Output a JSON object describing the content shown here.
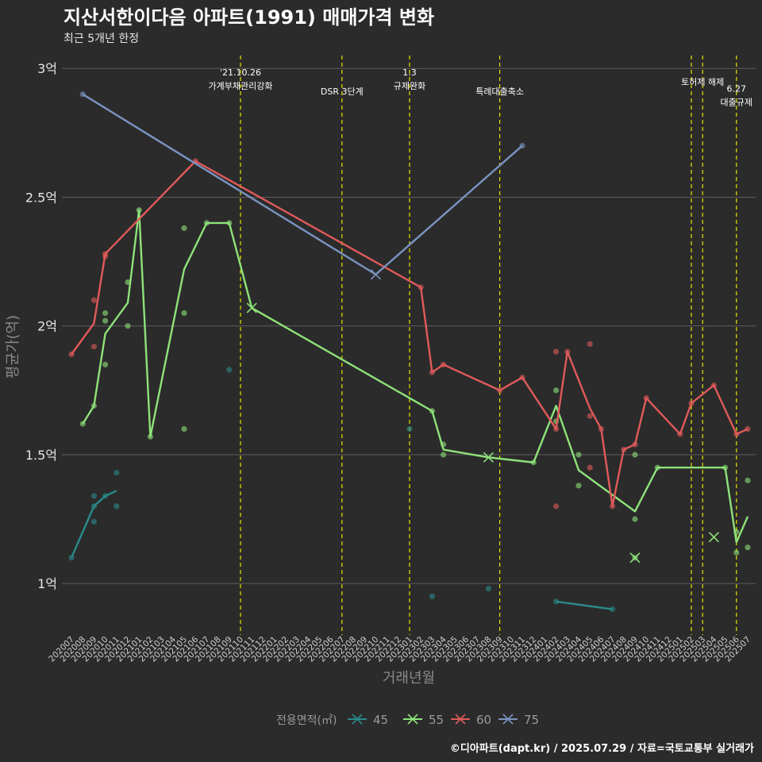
{
  "chart_data": {
    "type": "line",
    "title": "지산서한이다음 아파트(1991) 매매가격 변화",
    "subtitle": "최근 5개년 한정",
    "xlabel": "거래년월",
    "ylabel": "평균가(억)",
    "caption": "©디아파트(dapt.kr) / 2025.07.29 / 자료=국토교통부 실거래가",
    "ylim": [
      0.8,
      3.05
    ],
    "yticks": [
      {
        "v": 1,
        "label": "1억"
      },
      {
        "v": 1.5,
        "label": "1.5억"
      },
      {
        "v": 2,
        "label": "2억"
      },
      {
        "v": 2.5,
        "label": "2.5억"
      },
      {
        "v": 3,
        "label": "3억"
      }
    ],
    "categories": [
      "202007",
      "202008",
      "202009",
      "202010",
      "202011",
      "202012",
      "202101",
      "202102",
      "202103",
      "202104",
      "202105",
      "202106",
      "202107",
      "202108",
      "202109",
      "202110",
      "202111",
      "202112",
      "202201",
      "202202",
      "202203",
      "202204",
      "202205",
      "202206",
      "202207",
      "202208",
      "202209",
      "202210",
      "202211",
      "202212",
      "202301",
      "202302",
      "202303",
      "202304",
      "202305",
      "202306",
      "202307",
      "202308",
      "202309",
      "202310",
      "202311",
      "202312",
      "202401",
      "202402",
      "202403",
      "202404",
      "202405",
      "202406",
      "202407",
      "202408",
      "202409",
      "202410",
      "202411",
      "202412",
      "202501",
      "202502",
      "202503",
      "202504",
      "202505",
      "202506",
      "202507"
    ],
    "legend": {
      "title": "전용면적(㎡)",
      "position": "bottom"
    },
    "grid": true,
    "series": [
      {
        "name": "45",
        "color": "#2a8a8c",
        "line": [
          [
            "202007",
            1.1
          ],
          [
            "202009",
            1.3
          ],
          [
            "202010",
            1.34
          ],
          [
            "202011",
            1.36
          ],
          null,
          [
            "202402",
            0.93
          ],
          [
            "202407",
            0.9
          ]
        ],
        "points": [
          [
            "202007",
            1.1
          ],
          [
            "202009",
            1.3
          ],
          [
            "202009",
            1.34
          ],
          [
            "202009",
            1.24
          ],
          [
            "202010",
            1.34
          ],
          [
            "202011",
            1.43
          ],
          [
            "202011",
            1.3
          ],
          [
            "202109",
            1.83
          ],
          [
            "202301",
            1.6
          ],
          [
            "202303",
            0.95
          ],
          [
            "202308",
            0.98
          ],
          [
            "202402",
            0.93
          ],
          [
            "202407",
            0.9
          ]
        ],
        "crosses": []
      },
      {
        "name": "55",
        "color": "#8ee27a",
        "line": [
          [
            "202008",
            1.62
          ],
          [
            "202009",
            1.69
          ],
          [
            "202010",
            1.97
          ],
          [
            "202012",
            2.09
          ],
          [
            "202101",
            2.45
          ],
          [
            "202102",
            1.57
          ],
          [
            "202105",
            2.22
          ],
          [
            "202107",
            2.4
          ],
          [
            "202109",
            2.4
          ],
          [
            "202111",
            2.07
          ],
          [
            "202303",
            1.67
          ],
          [
            "202304",
            1.52
          ],
          [
            "202308",
            1.49
          ],
          [
            "202312",
            1.47
          ],
          [
            "202402",
            1.69
          ],
          [
            "202404",
            1.44
          ],
          [
            "202409",
            1.28
          ],
          [
            "202411",
            1.45
          ],
          [
            "202505",
            1.45
          ],
          [
            "202506",
            1.16
          ],
          [
            "202507",
            1.26
          ]
        ],
        "points": [
          [
            "202008",
            1.62
          ],
          [
            "202009",
            1.69
          ],
          [
            "202010",
            1.85
          ],
          [
            "202010",
            2.02
          ],
          [
            "202010",
            2.05
          ],
          [
            "202012",
            2.17
          ],
          [
            "202012",
            2.0
          ],
          [
            "202101",
            2.45
          ],
          [
            "202102",
            1.57
          ],
          [
            "202105",
            2.38
          ],
          [
            "202105",
            2.05
          ],
          [
            "202105",
            1.6
          ],
          [
            "202107",
            2.4
          ],
          [
            "202109",
            2.4
          ],
          [
            "202303",
            1.67
          ],
          [
            "202304",
            1.54
          ],
          [
            "202304",
            1.5
          ],
          [
            "202312",
            1.47
          ],
          [
            "202402",
            1.75
          ],
          [
            "202402",
            1.63
          ],
          [
            "202404",
            1.5
          ],
          [
            "202404",
            1.38
          ],
          [
            "202409",
            1.5
          ],
          [
            "202409",
            1.25
          ],
          [
            "202409",
            1.1
          ],
          [
            "202411",
            1.45
          ],
          [
            "202505",
            1.45
          ],
          [
            "202506",
            1.2
          ],
          [
            "202506",
            1.12
          ],
          [
            "202507",
            1.4
          ],
          [
            "202507",
            1.14
          ]
        ],
        "crosses": [
          [
            "202111",
            2.07
          ],
          [
            "202308",
            1.49
          ],
          [
            "202409",
            1.1
          ],
          [
            "202504",
            1.18
          ]
        ]
      },
      {
        "name": "60",
        "color": "#e05a5a",
        "line": [
          [
            "202007",
            1.89
          ],
          [
            "202009",
            2.01
          ],
          [
            "202010",
            2.28
          ],
          [
            "202106",
            2.64
          ],
          [
            "202302",
            2.15
          ],
          [
            "202303",
            1.82
          ],
          [
            "202304",
            1.85
          ],
          [
            "202309",
            1.75
          ],
          [
            "202311",
            1.8
          ],
          [
            "202402",
            1.6
          ],
          [
            "202403",
            1.9
          ],
          [
            "202405",
            1.68
          ],
          [
            "202406",
            1.6
          ],
          [
            "202407",
            1.3
          ],
          [
            "202408",
            1.52
          ],
          [
            "202409",
            1.54
          ],
          [
            "202410",
            1.72
          ],
          [
            "202501",
            1.58
          ],
          [
            "202502",
            1.7
          ],
          [
            "202504",
            1.77
          ],
          [
            "202506",
            1.58
          ],
          [
            "202507",
            1.6
          ]
        ],
        "points": [
          [
            "202007",
            1.89
          ],
          [
            "202009",
            2.1
          ],
          [
            "202009",
            1.92
          ],
          [
            "202010",
            2.28
          ],
          [
            "202010",
            2.27
          ],
          [
            "202106",
            2.64
          ],
          [
            "202302",
            2.15
          ],
          [
            "202303",
            1.82
          ],
          [
            "202304",
            1.85
          ],
          [
            "202309",
            1.75
          ],
          [
            "202311",
            1.8
          ],
          [
            "202402",
            1.9
          ],
          [
            "202402",
            1.3
          ],
          [
            "202402",
            1.6
          ],
          [
            "202403",
            1.9
          ],
          [
            "202405",
            1.93
          ],
          [
            "202405",
            1.65
          ],
          [
            "202405",
            1.45
          ],
          [
            "202406",
            1.6
          ],
          [
            "202407",
            1.3
          ],
          [
            "202408",
            1.52
          ],
          [
            "202409",
            1.54
          ],
          [
            "202410",
            1.72
          ],
          [
            "202501",
            1.58
          ],
          [
            "202502",
            1.7
          ],
          [
            "202504",
            1.77
          ],
          [
            "202506",
            1.58
          ],
          [
            "202507",
            1.6
          ]
        ],
        "crosses": []
      },
      {
        "name": "75",
        "color": "#7a93c0",
        "line": [
          [
            "202008",
            2.9
          ],
          [
            "202210",
            2.2
          ],
          [
            "202311",
            2.7
          ]
        ],
        "points": [
          [
            "202008",
            2.9
          ],
          [
            "202311",
            2.7
          ]
        ],
        "crosses": [
          [
            "202210",
            2.2
          ]
        ]
      }
    ],
    "annotations": [
      {
        "x": "202110",
        "lines": [
          "'21.10.26",
          "가계부채관리강화"
        ],
        "row": 0
      },
      {
        "x": "202207",
        "lines": [
          "DSR 3단계"
        ],
        "row": 2
      },
      {
        "x": "202301",
        "lines": [
          "1.3",
          "규제완화"
        ],
        "row": 0
      },
      {
        "x": "202309",
        "lines": [
          "특례대출축소"
        ],
        "row": 2
      },
      {
        "x": "202502",
        "lines": [],
        "row": 1
      },
      {
        "x": "202503",
        "lines": [
          "토허제 해제"
        ],
        "row": 1
      },
      {
        "x": "202506",
        "lines": [
          "6.27",
          "대출규제"
        ],
        "row": 1.7
      }
    ]
  }
}
